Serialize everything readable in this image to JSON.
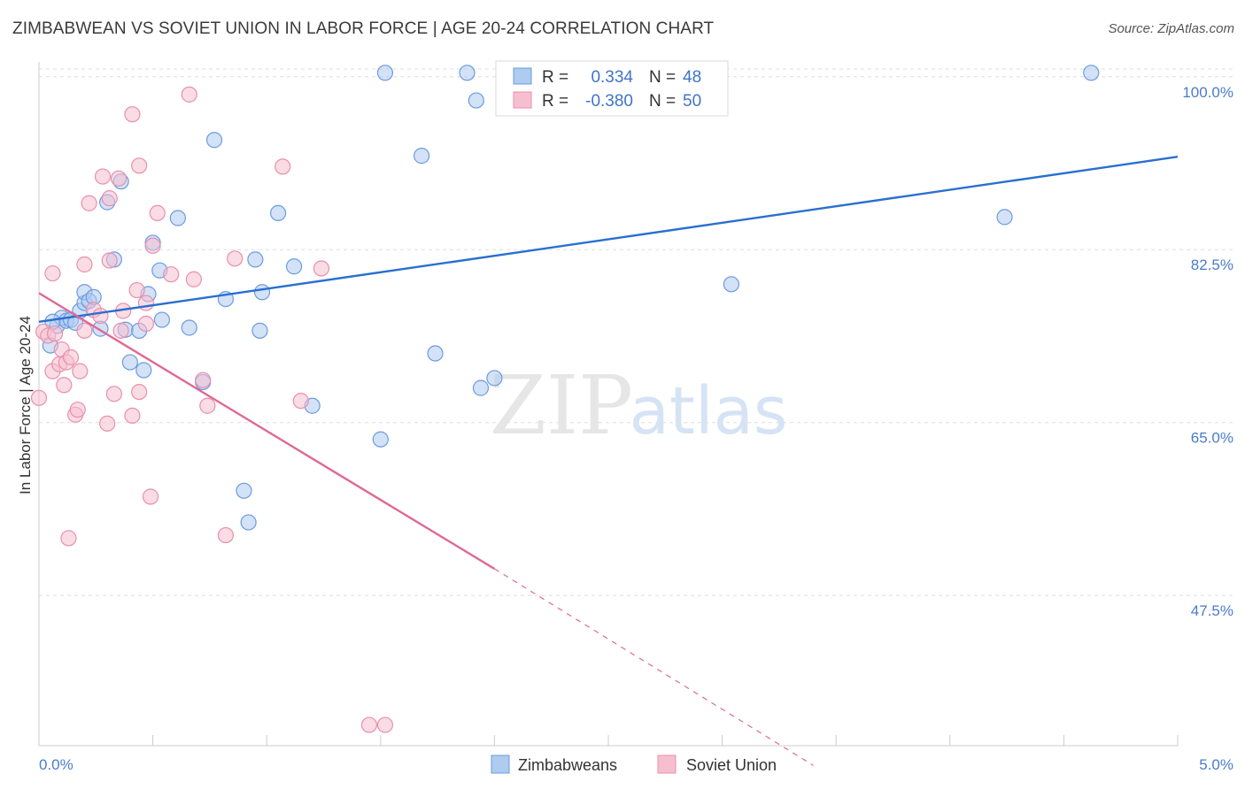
{
  "title": "ZIMBABWEAN VS SOVIET UNION IN LABOR FORCE | AGE 20-24 CORRELATION CHART",
  "source": "Source: ZipAtlas.com",
  "watermark": {
    "zip": "ZIP",
    "atlas": "atlas"
  },
  "colors": {
    "blue_fill": "#aecbf0",
    "blue_stroke": "#6b9be0",
    "blue_line": "#2a6fd0",
    "pink_fill": "#f6bfd0",
    "pink_stroke": "#e98fac",
    "pink_line": "#e06894",
    "tick_text": "#4a7cc9",
    "grid": "#dddddd"
  },
  "legend": {
    "r_label": "R =",
    "n_label": "N =",
    "rows": [
      {
        "series": "Zimbabweans",
        "r": "0.334",
        "n": "48"
      },
      {
        "series": "Soviet Union",
        "r": "-0.380",
        "n": "50"
      }
    ]
  },
  "chart_data": {
    "type": "scatter",
    "title": "ZIMBABWEAN VS SOVIET UNION IN LABOR FORCE | AGE 20-24 CORRELATION CHART",
    "xlabel": "",
    "ylabel": "In Labor Force | Age 20-24",
    "xlim": [
      0,
      5.0
    ],
    "ylim": [
      32.3,
      101.5
    ],
    "x_tick_labels": [
      "0.0%",
      "5.0%"
    ],
    "y_ticks": [
      47.5,
      65.0,
      82.5,
      100.0
    ],
    "y_tick_labels": [
      "47.5%",
      "65.0%",
      "82.5%",
      "100.0%"
    ],
    "grid": true,
    "legend_position": "bottom-center",
    "series": [
      {
        "name": "Zimbabweans",
        "points": [
          [
            0.05,
            72.8
          ],
          [
            0.08,
            74.8
          ],
          [
            0.1,
            75.6
          ],
          [
            0.12,
            75.3
          ],
          [
            0.14,
            75.4
          ],
          [
            0.16,
            75.1
          ],
          [
            0.18,
            76.3
          ],
          [
            0.2,
            77.1
          ],
          [
            0.2,
            78.2
          ],
          [
            0.22,
            77.3
          ],
          [
            0.24,
            77.7
          ],
          [
            0.27,
            74.5
          ],
          [
            0.3,
            87.3
          ],
          [
            0.33,
            81.5
          ],
          [
            0.36,
            89.4
          ],
          [
            0.38,
            74.4
          ],
          [
            0.4,
            71.1
          ],
          [
            0.44,
            74.3
          ],
          [
            0.46,
            70.3
          ],
          [
            0.48,
            78.0
          ],
          [
            0.5,
            83.2
          ],
          [
            0.53,
            80.4
          ],
          [
            0.54,
            75.4
          ],
          [
            0.61,
            85.7
          ],
          [
            0.66,
            74.6
          ],
          [
            0.72,
            69.1
          ],
          [
            0.77,
            93.6
          ],
          [
            0.82,
            77.5
          ],
          [
            0.9,
            58.1
          ],
          [
            0.92,
            54.9
          ],
          [
            0.95,
            81.5
          ],
          [
            0.97,
            74.3
          ],
          [
            0.98,
            78.2
          ],
          [
            1.05,
            86.2
          ],
          [
            1.12,
            80.8
          ],
          [
            1.2,
            66.7
          ],
          [
            1.5,
            63.3
          ],
          [
            1.52,
            100.4
          ],
          [
            1.68,
            92.0
          ],
          [
            1.74,
            72.0
          ],
          [
            1.88,
            100.4
          ],
          [
            1.92,
            97.6
          ],
          [
            1.94,
            68.5
          ],
          [
            2.0,
            69.5
          ],
          [
            3.04,
            79.0
          ],
          [
            4.24,
            85.8
          ],
          [
            4.62,
            100.4
          ],
          [
            0.06,
            75.2
          ]
        ]
      },
      {
        "name": "Soviet Union",
        "points": [
          [
            0.0,
            67.5
          ],
          [
            0.02,
            74.2
          ],
          [
            0.04,
            73.8
          ],
          [
            0.06,
            70.2
          ],
          [
            0.06,
            80.1
          ],
          [
            0.07,
            74.0
          ],
          [
            0.09,
            70.9
          ],
          [
            0.1,
            72.4
          ],
          [
            0.11,
            68.8
          ],
          [
            0.12,
            71.1
          ],
          [
            0.13,
            53.3
          ],
          [
            0.14,
            71.6
          ],
          [
            0.16,
            65.8
          ],
          [
            0.17,
            66.3
          ],
          [
            0.18,
            70.2
          ],
          [
            0.2,
            74.3
          ],
          [
            0.2,
            81.0
          ],
          [
            0.22,
            87.2
          ],
          [
            0.24,
            76.4
          ],
          [
            0.27,
            75.8
          ],
          [
            0.28,
            89.9
          ],
          [
            0.3,
            64.9
          ],
          [
            0.31,
            87.7
          ],
          [
            0.31,
            81.4
          ],
          [
            0.33,
            67.9
          ],
          [
            0.35,
            89.7
          ],
          [
            0.36,
            74.3
          ],
          [
            0.37,
            76.3
          ],
          [
            0.41,
            96.2
          ],
          [
            0.41,
            65.7
          ],
          [
            0.43,
            78.4
          ],
          [
            0.44,
            68.1
          ],
          [
            0.44,
            91.0
          ],
          [
            0.47,
            77.1
          ],
          [
            0.47,
            75.0
          ],
          [
            0.49,
            57.5
          ],
          [
            0.5,
            82.9
          ],
          [
            0.52,
            86.2
          ],
          [
            0.58,
            80.0
          ],
          [
            0.66,
            98.2
          ],
          [
            0.68,
            79.5
          ],
          [
            0.72,
            69.3
          ],
          [
            0.74,
            66.7
          ],
          [
            0.82,
            53.6
          ],
          [
            0.86,
            81.6
          ],
          [
            1.07,
            90.9
          ],
          [
            1.15,
            67.2
          ],
          [
            1.24,
            80.6
          ],
          [
            1.45,
            34.4
          ],
          [
            1.52,
            34.4
          ]
        ]
      }
    ],
    "trendlines": [
      {
        "series": "Zimbabweans",
        "from": [
          0.0,
          75.2
        ],
        "to": [
          5.0,
          91.9
        ],
        "style": "solid"
      },
      {
        "series": "Soviet Union",
        "from": [
          0.0,
          78.1
        ],
        "to": [
          2.0,
          50.2
        ],
        "style": "solid"
      },
      {
        "series": "Soviet Union",
        "from": [
          2.0,
          50.2
        ],
        "to": [
          3.4,
          30.3
        ],
        "style": "dashed"
      }
    ]
  }
}
